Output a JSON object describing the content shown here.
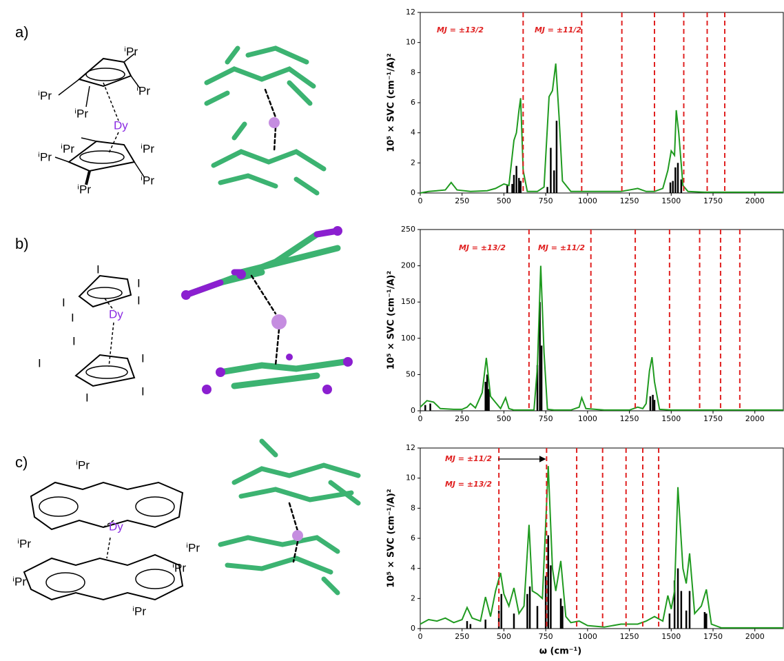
{
  "panels": [
    {
      "label": "a)",
      "labels": [
        "ⁱPr",
        "ⁱPr",
        "ⁱPr",
        "ⁱPr",
        "ⁱPr",
        "ⁱPr",
        "ⁱPr",
        "ⁱPr",
        "ⁱPr",
        "Dy"
      ]
    },
    {
      "label": "b)",
      "labels": [
        "I",
        "I",
        "I",
        "I",
        "I",
        "I",
        "I",
        "I",
        "I",
        "I",
        "Dy"
      ]
    },
    {
      "label": "c)",
      "labels": [
        "ⁱPr",
        "ⁱPr",
        "ⁱPr",
        "ⁱPr",
        "ⁱPr",
        "ⁱPr",
        "Dy"
      ]
    }
  ],
  "chart_data": [
    {
      "type": "line",
      "ylabel": "10⁵ × SVC (cm⁻¹/A)²",
      "xlim": [
        0,
        2170
      ],
      "xticks": [
        0,
        250,
        500,
        750,
        1000,
        1250,
        1500,
        1750,
        2000
      ],
      "ylim": [
        0,
        12
      ],
      "yticks": [
        0,
        2,
        4,
        6,
        8,
        10,
        12
      ],
      "line": {
        "color": "#1f9a1f",
        "x": [
          0,
          50,
          100,
          150,
          185,
          220,
          300,
          400,
          450,
          500,
          530,
          560,
          575,
          590,
          600,
          615,
          640,
          700,
          740,
          770,
          790,
          810,
          830,
          850,
          900,
          1000,
          1100,
          1200,
          1300,
          1350,
          1400,
          1450,
          1480,
          1500,
          1520,
          1530,
          1545,
          1570,
          1600,
          1700,
          1800,
          2170
        ],
        "values": [
          0,
          0.1,
          0.15,
          0.2,
          0.7,
          0.2,
          0.1,
          0.15,
          0.3,
          0.6,
          0.5,
          3.5,
          4,
          5.5,
          6.3,
          1.5,
          0.1,
          0.1,
          0.4,
          6.4,
          6.8,
          8.6,
          5,
          0.8,
          0.1,
          0.1,
          0.1,
          0.1,
          0.3,
          0.1,
          0.1,
          0.3,
          1.5,
          2.8,
          2.5,
          5.5,
          4,
          0.5,
          0.1,
          0.05,
          0.05,
          0.05
        ]
      },
      "sticks": {
        "color": "#000000",
        "x": [
          520,
          550,
          560,
          575,
          590,
          600,
          760,
          780,
          800,
          815,
          1495,
          1510,
          1525,
          1540,
          1560
        ],
        "values": [
          0.5,
          0.6,
          1.2,
          1.8,
          1,
          0.8,
          0.4,
          3,
          1.5,
          4.8,
          0.7,
          0.8,
          1.7,
          2,
          0.9
        ]
      },
      "levels": {
        "color": "#e02020",
        "x": [
          615,
          965,
          1205,
          1400,
          1575,
          1715,
          1820
        ]
      },
      "annotations": [
        "MJ = ±13/2",
        "MJ = ±11/2"
      ]
    },
    {
      "type": "line",
      "ylabel": "10⁵ × SVC (cm⁻¹/A)²",
      "xlim": [
        0,
        2170
      ],
      "xticks": [
        0,
        250,
        500,
        750,
        1000,
        1250,
        1500,
        1750,
        2000
      ],
      "ylim": [
        0,
        250
      ],
      "yticks": [
        0,
        50,
        100,
        150,
        200,
        250
      ],
      "line": {
        "color": "#1f9a1f",
        "x": [
          0,
          40,
          80,
          120,
          200,
          250,
          280,
          300,
          330,
          370,
          395,
          420,
          480,
          510,
          530,
          560,
          600,
          650,
          680,
          700,
          720,
          740,
          760,
          800,
          900,
          950,
          965,
          990,
          1100,
          1250,
          1300,
          1330,
          1350,
          1370,
          1385,
          1400,
          1430,
          1500,
          2170
        ],
        "values": [
          5,
          14,
          12,
          3,
          2,
          2,
          5,
          10,
          4,
          25,
          73,
          20,
          3,
          18,
          3,
          1,
          1,
          1,
          1,
          60,
          200,
          80,
          2,
          1,
          1,
          5,
          18,
          3,
          1,
          1,
          5,
          3,
          10,
          55,
          74,
          40,
          2,
          1,
          1
        ]
      },
      "sticks": {
        "color": "#000000",
        "x": [
          30,
          60,
          390,
          400,
          410,
          700,
          715,
          725,
          1375,
          1390,
          1400
        ],
        "values": [
          8,
          10,
          40,
          50,
          30,
          63,
          150,
          90,
          20,
          22,
          15
        ]
      },
      "levels": {
        "color": "#e02020",
        "x": [
          650,
          1020,
          1285,
          1490,
          1670,
          1795,
          1910
        ]
      },
      "annotations": [
        "MJ = ±13/2",
        "MJ = ±11/2"
      ]
    },
    {
      "type": "line",
      "ylabel": "10⁵ × SVC (cm⁻¹/A)²",
      "xlabel": "ω (cm⁻¹)",
      "xlim": [
        0,
        2170
      ],
      "xticks": [
        0,
        250,
        500,
        750,
        1000,
        1250,
        1500,
        1750,
        2000
      ],
      "ylim": [
        0,
        12
      ],
      "yticks": [
        0,
        2,
        4,
        6,
        8,
        10,
        12
      ],
      "line": {
        "color": "#1f9a1f",
        "x": [
          0,
          50,
          100,
          150,
          200,
          250,
          280,
          310,
          360,
          390,
          420,
          450,
          480,
          500,
          530,
          560,
          590,
          620,
          650,
          670,
          700,
          730,
          765,
          790,
          810,
          840,
          870,
          900,
          950,
          1000,
          1100,
          1200,
          1300,
          1350,
          1400,
          1450,
          1480,
          1500,
          1520,
          1540,
          1570,
          1590,
          1610,
          1640,
          1680,
          1710,
          1740,
          1800,
          2170
        ],
        "values": [
          0.3,
          0.6,
          0.5,
          0.7,
          0.4,
          0.6,
          1.4,
          0.7,
          0.5,
          2.1,
          0.8,
          2.5,
          3.7,
          2.3,
          1.5,
          2.7,
          1,
          1.5,
          6.9,
          2.5,
          2.3,
          2,
          10.8,
          4,
          2.5,
          4.5,
          0.8,
          0.4,
          0.5,
          0.2,
          0.1,
          0.3,
          0.3,
          0.5,
          0.8,
          0.5,
          2.2,
          1.3,
          2.5,
          9.4,
          4,
          3,
          5,
          1,
          1.5,
          2.6,
          0.3,
          0.05,
          0.05
        ]
      },
      "sticks": {
        "color": "#000000",
        "x": [
          280,
          300,
          390,
          470,
          485,
          560,
          640,
          655,
          700,
          750,
          765,
          780,
          840,
          850,
          1490,
          1520,
          1540,
          1560,
          1590,
          1610,
          1700,
          1710
        ],
        "values": [
          0.5,
          0.3,
          0.6,
          1.2,
          2.3,
          1,
          2.3,
          2.8,
          1.5,
          3.5,
          6.2,
          4.2,
          2,
          1.5,
          1,
          3.2,
          4,
          2.5,
          1.2,
          2.5,
          1.1,
          1
        ]
      },
      "levels": {
        "color": "#e02020",
        "x": [
          470,
          755,
          935,
          1090,
          1230,
          1330,
          1425
        ]
      },
      "annotations": [
        "MJ = ±11/2",
        "MJ = ±13/2"
      ]
    }
  ]
}
